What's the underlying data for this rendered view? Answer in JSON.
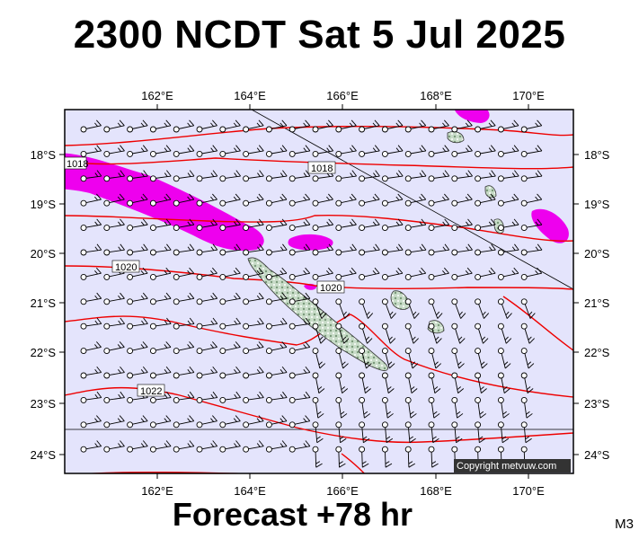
{
  "header": {
    "title": "2300 NCDT Sat 5 Jul 2025"
  },
  "footer": {
    "forecast_label": "Forecast +78 hr",
    "model_code": "M3",
    "copyright": "Copyright metvuw.com"
  },
  "map": {
    "x_ticks": [
      "162°E",
      "164°E",
      "166°E",
      "168°E",
      "170°E"
    ],
    "y_ticks": [
      "18°S",
      "19°S",
      "20°S",
      "21°S",
      "22°S",
      "23°S",
      "24°S"
    ],
    "isobar_labels": [
      "1018",
      "1018",
      "1020",
      "1020",
      "1022"
    ],
    "colors": {
      "ocean": "#e4e4fc",
      "isobar": "#ee0000",
      "rain": "#ee00ee",
      "land": "#b8d4b8",
      "grid_line": "#000000"
    },
    "features": [
      "wind-barbs",
      "isobars",
      "precipitation",
      "new-caledonia",
      "loyalty-islands"
    ]
  }
}
